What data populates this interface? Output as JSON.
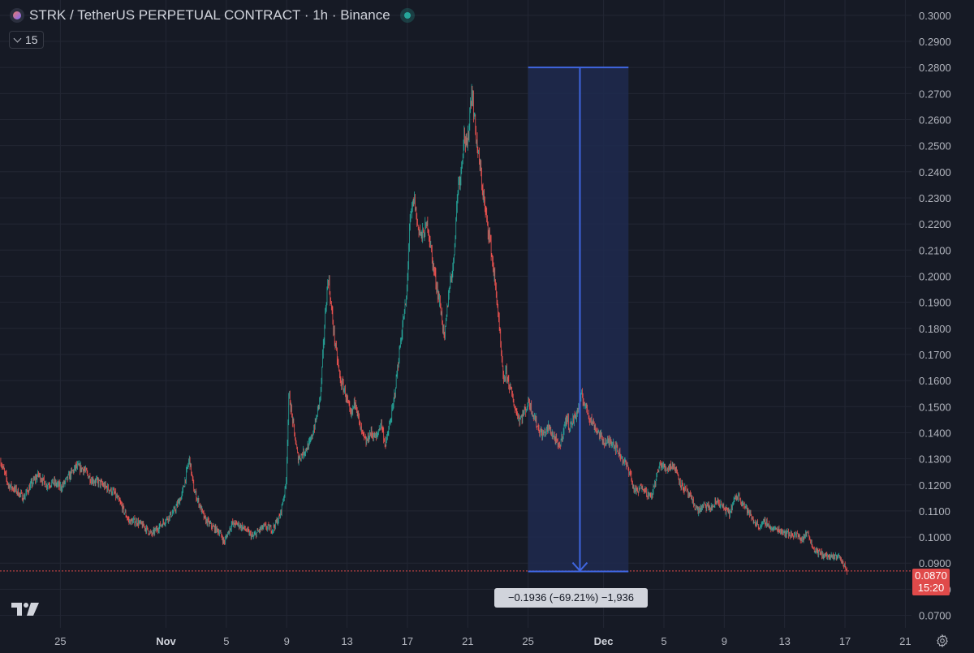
{
  "header": {
    "title": "STRK / TetherUS PERPETUAL CONTRACT · 1h · Binance"
  },
  "indicator_toggle": {
    "label": "15"
  },
  "price_badge": {
    "price": "0.0870",
    "countdown": "15:20"
  },
  "measure": {
    "label": "−0.1936 (−69.21%) −1,936"
  },
  "icons": {
    "symbol": "symbol-logo-icon",
    "live": "market-open-icon",
    "chevron": "chevron-down-icon",
    "logo": "tradingview-logo-icon",
    "settings": "gear-icon"
  },
  "colors": {
    "background": "#161a25",
    "grid": "#232734",
    "up": "#26a69a",
    "down": "#ef5350",
    "measure_fill": "#1e2a4f",
    "measure_line": "#3f66e0",
    "price_line": "#e04a4a",
    "text": "#d1d4dc"
  },
  "chart_data": {
    "type": "candlestick",
    "title": "STRK / TetherUS PERPETUAL CONTRACT · 1h · Binance",
    "y_ticks": [
      "0.0700",
      "0.0800",
      "0.0900",
      "0.1000",
      "0.1100",
      "0.1200",
      "0.1300",
      "0.1400",
      "0.1500",
      "0.1600",
      "0.1700",
      "0.1800",
      "0.1900",
      "0.2000",
      "0.2100",
      "0.2200",
      "0.2300",
      "0.2400",
      "0.2500",
      "0.2600",
      "0.2700",
      "0.2800",
      "0.2900",
      "0.3000"
    ],
    "ylim": [
      0.068,
      0.3015
    ],
    "x_ticks": [
      {
        "label": "25",
        "bold": false
      },
      {
        "label": "Nov",
        "bold": true
      },
      {
        "label": "5",
        "bold": false
      },
      {
        "label": "9",
        "bold": false
      },
      {
        "label": "13",
        "bold": false
      },
      {
        "label": "17",
        "bold": false
      },
      {
        "label": "21",
        "bold": false
      },
      {
        "label": "25",
        "bold": false
      },
      {
        "label": "Dec",
        "bold": true
      },
      {
        "label": "5",
        "bold": false
      },
      {
        "label": "9",
        "bold": false
      },
      {
        "label": "13",
        "bold": false
      },
      {
        "label": "17",
        "bold": false
      },
      {
        "label": "21",
        "bold": false
      }
    ],
    "x_tick_days": [
      -0.55,
      6.45,
      10.45,
      14.45,
      18.45,
      22.45,
      26.45,
      30.45,
      35.45,
      39.45,
      43.45,
      47.45,
      51.45,
      55.45
    ],
    "x_range_days": [
      -4.55,
      60.0
    ],
    "x_range_note": "day index 0 = Oct 25 00:00 (the first '25' tick at about -0.55)",
    "last_price": 0.087,
    "price_path": [
      [
        -4.5,
        0.129
      ],
      [
        -4.0,
        0.12
      ],
      [
        -3.5,
        0.118
      ],
      [
        -3.0,
        0.115
      ],
      [
        -2.5,
        0.12
      ],
      [
        -2.0,
        0.124
      ],
      [
        -1.5,
        0.12
      ],
      [
        -1.0,
        0.121
      ],
      [
        -0.5,
        0.119
      ],
      [
        0.0,
        0.123
      ],
      [
        0.5,
        0.127
      ],
      [
        1.0,
        0.126
      ],
      [
        1.5,
        0.122
      ],
      [
        2.0,
        0.121
      ],
      [
        2.5,
        0.119
      ],
      [
        3.0,
        0.117
      ],
      [
        3.5,
        0.112
      ],
      [
        4.0,
        0.106
      ],
      [
        4.5,
        0.106
      ],
      [
        5.0,
        0.104
      ],
      [
        5.5,
        0.101
      ],
      [
        6.0,
        0.104
      ],
      [
        6.5,
        0.107
      ],
      [
        7.0,
        0.11
      ],
      [
        7.5,
        0.116
      ],
      [
        8.0,
        0.13
      ],
      [
        8.3,
        0.118
      ],
      [
        8.7,
        0.112
      ],
      [
        9.0,
        0.107
      ],
      [
        9.5,
        0.104
      ],
      [
        10.0,
        0.102
      ],
      [
        10.3,
        0.098
      ],
      [
        10.8,
        0.105
      ],
      [
        11.2,
        0.105
      ],
      [
        11.7,
        0.103
      ],
      [
        12.2,
        0.1
      ],
      [
        12.7,
        0.103
      ],
      [
        13.0,
        0.104
      ],
      [
        13.5,
        0.103
      ],
      [
        14.0,
        0.108
      ],
      [
        14.4,
        0.12
      ],
      [
        14.6,
        0.155
      ],
      [
        14.9,
        0.142
      ],
      [
        15.2,
        0.13
      ],
      [
        15.5,
        0.132
      ],
      [
        16.0,
        0.136
      ],
      [
        16.4,
        0.145
      ],
      [
        16.7,
        0.155
      ],
      [
        17.0,
        0.185
      ],
      [
        17.2,
        0.2
      ],
      [
        17.4,
        0.188
      ],
      [
        17.7,
        0.172
      ],
      [
        18.0,
        0.16
      ],
      [
        18.3,
        0.156
      ],
      [
        18.7,
        0.146
      ],
      [
        19.0,
        0.153
      ],
      [
        19.3,
        0.142
      ],
      [
        19.7,
        0.136
      ],
      [
        20.0,
        0.14
      ],
      [
        20.4,
        0.138
      ],
      [
        20.7,
        0.144
      ],
      [
        21.0,
        0.135
      ],
      [
        21.5,
        0.15
      ],
      [
        21.8,
        0.165
      ],
      [
        22.1,
        0.18
      ],
      [
        22.4,
        0.192
      ],
      [
        22.6,
        0.22
      ],
      [
        22.9,
        0.23
      ],
      [
        23.1,
        0.22
      ],
      [
        23.4,
        0.215
      ],
      [
        23.8,
        0.22
      ],
      [
        24.1,
        0.206
      ],
      [
        24.4,
        0.196
      ],
      [
        24.7,
        0.186
      ],
      [
        24.9,
        0.175
      ],
      [
        25.2,
        0.195
      ],
      [
        25.5,
        0.205
      ],
      [
        25.8,
        0.235
      ],
      [
        26.0,
        0.24
      ],
      [
        26.2,
        0.255
      ],
      [
        26.4,
        0.248
      ],
      [
        26.7,
        0.272
      ],
      [
        26.9,
        0.26
      ],
      [
        27.1,
        0.248
      ],
      [
        27.3,
        0.24
      ],
      [
        27.6,
        0.225
      ],
      [
        27.9,
        0.215
      ],
      [
        28.1,
        0.205
      ],
      [
        28.4,
        0.19
      ],
      [
        28.6,
        0.175
      ],
      [
        28.8,
        0.16
      ],
      [
        29.0,
        0.163
      ],
      [
        29.3,
        0.156
      ],
      [
        29.6,
        0.149
      ],
      [
        29.9,
        0.145
      ],
      [
        30.2,
        0.148
      ],
      [
        30.5,
        0.152
      ],
      [
        30.8,
        0.147
      ],
      [
        31.1,
        0.142
      ],
      [
        31.4,
        0.139
      ],
      [
        31.8,
        0.142
      ],
      [
        32.2,
        0.138
      ],
      [
        32.5,
        0.134
      ],
      [
        33.0,
        0.146
      ],
      [
        33.2,
        0.142
      ],
      [
        33.7,
        0.148
      ],
      [
        34.0,
        0.154
      ],
      [
        34.2,
        0.151
      ],
      [
        34.6,
        0.145
      ],
      [
        34.9,
        0.142
      ],
      [
        35.3,
        0.138
      ],
      [
        35.6,
        0.136
      ],
      [
        36.0,
        0.137
      ],
      [
        36.4,
        0.133
      ],
      [
        36.8,
        0.129
      ],
      [
        37.2,
        0.125
      ],
      [
        37.4,
        0.119
      ],
      [
        37.7,
        0.117
      ],
      [
        38.0,
        0.12
      ],
      [
        38.3,
        0.117
      ],
      [
        38.6,
        0.115
      ],
      [
        38.9,
        0.122
      ],
      [
        39.2,
        0.128
      ],
      [
        39.6,
        0.126
      ],
      [
        40.0,
        0.128
      ],
      [
        40.3,
        0.125
      ],
      [
        40.6,
        0.12
      ],
      [
        41.0,
        0.117
      ],
      [
        41.3,
        0.114
      ],
      [
        41.7,
        0.11
      ],
      [
        42.1,
        0.112
      ],
      [
        42.6,
        0.111
      ],
      [
        43.0,
        0.114
      ],
      [
        43.4,
        0.111
      ],
      [
        43.8,
        0.109
      ],
      [
        44.1,
        0.114
      ],
      [
        44.4,
        0.116
      ],
      [
        44.7,
        0.113
      ],
      [
        45.0,
        0.11
      ],
      [
        45.4,
        0.106
      ],
      [
        45.8,
        0.104
      ],
      [
        46.2,
        0.106
      ],
      [
        46.6,
        0.103
      ],
      [
        47.0,
        0.103
      ],
      [
        47.4,
        0.102
      ],
      [
        47.8,
        0.101
      ],
      [
        48.2,
        0.101
      ],
      [
        48.6,
        0.099
      ],
      [
        49.0,
        0.102
      ],
      [
        49.3,
        0.096
      ],
      [
        49.7,
        0.094
      ],
      [
        50.1,
        0.093
      ],
      [
        50.6,
        0.092
      ],
      [
        51.0,
        0.093
      ],
      [
        51.3,
        0.09
      ],
      [
        51.6,
        0.087
      ]
    ],
    "measure_tool": {
      "x_start_day": 30.45,
      "x_end_day": 37.1,
      "y_top": 0.28,
      "y_bottom": 0.0868,
      "change": -0.1936,
      "change_pct": -69.21,
      "ticks": -1936
    }
  }
}
